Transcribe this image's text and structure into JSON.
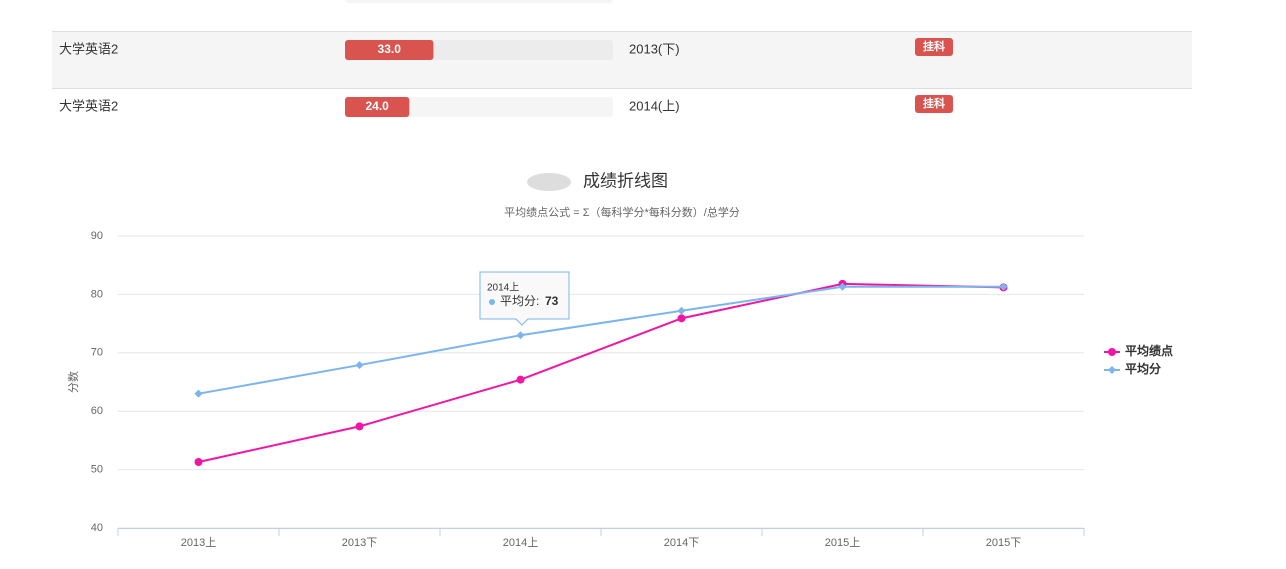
{
  "table": {
    "score_range": [
      0,
      100
    ],
    "rows": [
      {
        "course": "大学英语2",
        "score": 33.0,
        "score_label": "33.0",
        "term": "2013(下)",
        "status": "挂科"
      },
      {
        "course": "大学英语2",
        "score": 24.0,
        "score_label": "24.0",
        "term": "2014(上)",
        "status": "挂科"
      }
    ]
  },
  "chart_data": {
    "type": "line",
    "title": "成绩折线图",
    "subtitle": "平均绩点公式 = Σ（每科学分*每科分数）/总学分",
    "y_label": "分数",
    "categories": [
      "2013上",
      "2013下",
      "2014上",
      "2014下",
      "2015上",
      "2015下"
    ],
    "series": [
      {
        "name": "平均绩点",
        "color": "#f015a5",
        "marker": "circle",
        "values": [
          51.3,
          57.4,
          65.4,
          75.9,
          81.8,
          81.2
        ]
      },
      {
        "name": "平均分",
        "color": "#7cb5ec",
        "marker": "diamond",
        "values": [
          63,
          67.9,
          73,
          77.2,
          81.3,
          81.3
        ]
      }
    ],
    "ylim": [
      40,
      90
    ],
    "yticks": [
      40,
      50,
      60,
      70,
      80,
      90
    ],
    "grid": true,
    "legend": "right",
    "tooltip": {
      "header": "2014上",
      "label": "平均分:",
      "value": "73"
    }
  }
}
